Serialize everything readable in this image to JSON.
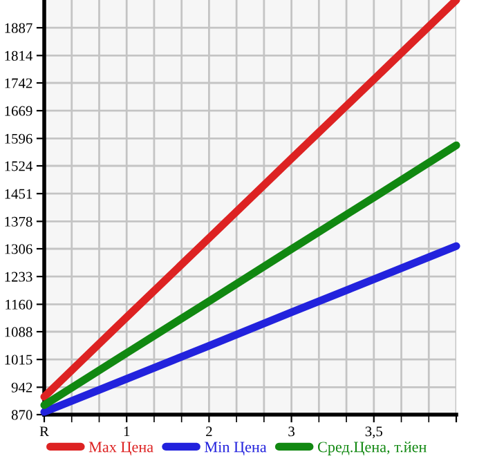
{
  "chart_data": {
    "type": "line",
    "categories": [
      "R",
      "1",
      "2",
      "3",
      "3,5",
      null
    ],
    "series": [
      {
        "name": "Max Цена",
        "color": "#dd2222",
        "values": [
          917,
          1126,
          1334,
          1543,
          1751,
          1960
        ]
      },
      {
        "name": "Min Цена",
        "color": "#2222dd",
        "values": [
          877,
          964,
          1051,
          1139,
          1226,
          1313
        ]
      },
      {
        "name": "Сред.Цена, т.йен",
        "color": "#118811",
        "values": [
          895,
          1032,
          1168,
          1305,
          1441,
          1578
        ]
      }
    ],
    "ylim": [
      870,
      1960
    ],
    "yticks": [
      870,
      942,
      1015,
      1088,
      1160,
      1233,
      1306,
      1378,
      1451,
      1524,
      1596,
      1669,
      1742,
      1814,
      1887
    ],
    "grid": true,
    "legend": "bottom",
    "marker": "none",
    "line_style": "solid"
  }
}
